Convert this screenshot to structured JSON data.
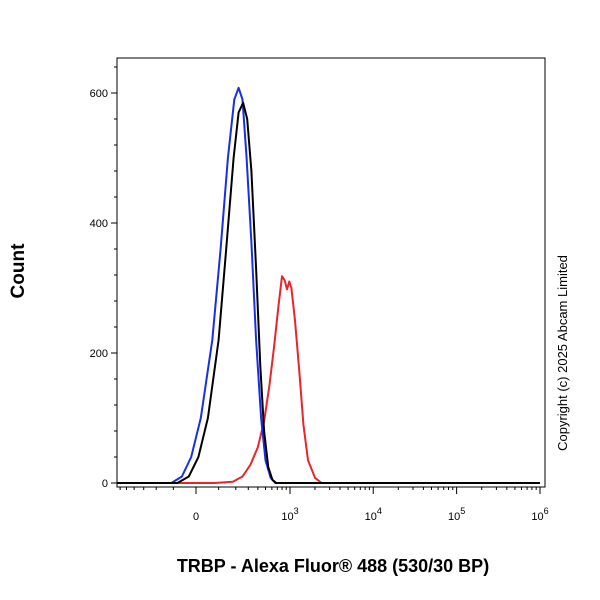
{
  "chart_data": {
    "type": "line",
    "title": "",
    "xlabel": "TRBP - Alexa Fluor® 488 (530/30 BP)",
    "ylabel": "Count",
    "x_scale": "biexponential",
    "ylim": [
      0,
      660
    ],
    "y_ticks": [
      0,
      200,
      400,
      600
    ],
    "x_ticks": [
      {
        "value": 0,
        "base": "0",
        "exp": ""
      },
      {
        "value": 1000,
        "base": "10",
        "exp": "3"
      },
      {
        "value": 10000,
        "base": "10",
        "exp": "4"
      },
      {
        "value": 100000,
        "base": "10",
        "exp": "5"
      },
      {
        "value": 1000000,
        "base": "10",
        "exp": "6"
      }
    ],
    "grid": false,
    "legend": "none",
    "series": [
      {
        "color": "#e8252b",
        "points": [
          [
            -2000,
            0
          ],
          [
            80,
            0
          ],
          [
            180,
            2
          ],
          [
            250,
            10
          ],
          [
            320,
            28
          ],
          [
            400,
            55
          ],
          [
            480,
            95
          ],
          [
            560,
            150
          ],
          [
            640,
            210
          ],
          [
            720,
            270
          ],
          [
            800,
            318
          ],
          [
            860,
            312
          ],
          [
            920,
            298
          ],
          [
            980,
            310
          ],
          [
            1040,
            300
          ],
          [
            1150,
            250
          ],
          [
            1300,
            170
          ],
          [
            1450,
            90
          ],
          [
            1650,
            35
          ],
          [
            2000,
            8
          ],
          [
            2400,
            0
          ],
          [
            1000000,
            0
          ]
        ]
      },
      {
        "color": "#1a2ee6",
        "points": [
          [
            -2000,
            0
          ],
          [
            -110,
            0
          ],
          [
            -60,
            10
          ],
          [
            -20,
            40
          ],
          [
            20,
            100
          ],
          [
            70,
            220
          ],
          [
            110,
            360
          ],
          [
            150,
            500
          ],
          [
            190,
            590
          ],
          [
            220,
            608
          ],
          [
            250,
            590
          ],
          [
            285,
            500
          ],
          [
            330,
            370
          ],
          [
            380,
            220
          ],
          [
            440,
            100
          ],
          [
            500,
            35
          ],
          [
            580,
            8
          ],
          [
            660,
            0
          ],
          [
            1000000,
            0
          ]
        ]
      },
      {
        "color": "#000000",
        "points": [
          [
            -2000,
            0
          ],
          [
            -80,
            0
          ],
          [
            -30,
            10
          ],
          [
            10,
            40
          ],
          [
            50,
            100
          ],
          [
            100,
            220
          ],
          [
            140,
            360
          ],
          [
            185,
            500
          ],
          [
            220,
            570
          ],
          [
            255,
            585
          ],
          [
            290,
            560
          ],
          [
            330,
            480
          ],
          [
            380,
            330
          ],
          [
            430,
            180
          ],
          [
            480,
            80
          ],
          [
            540,
            25
          ],
          [
            610,
            5
          ],
          [
            680,
            0
          ],
          [
            1000000,
            0
          ]
        ]
      }
    ]
  },
  "copyright": "Copyright (c) 2025 Abcam Limited"
}
